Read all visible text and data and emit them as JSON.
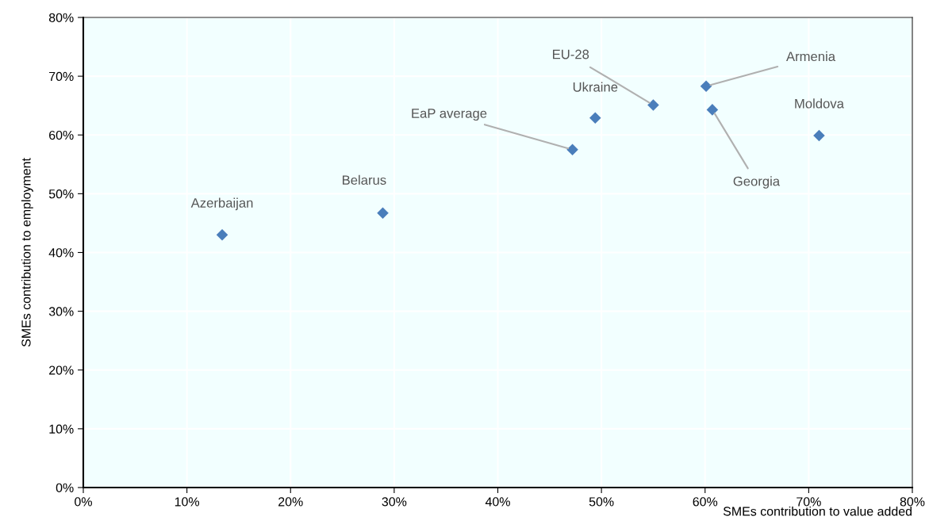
{
  "chart_data": {
    "type": "scatter",
    "xlabel": "SMEs contribution to value added",
    "ylabel": "SMEs contribution to employment",
    "series": [
      {
        "color": "#4a7ebb",
        "x": [
          13.4,
          28.9,
          47.2,
          49.4,
          55.0,
          60.1,
          60.7,
          71.0
        ],
        "values": [
          43.0,
          46.7,
          57.5,
          62.9,
          65.1,
          68.3,
          64.3,
          59.9
        ]
      }
    ],
    "marker": "diamond",
    "grid": true,
    "xlim": [
      0,
      80
    ],
    "ylim": [
      0,
      80
    ],
    "xticks": [
      {
        "value": 0,
        "label": "0%"
      },
      {
        "value": 10,
        "label": "10%"
      },
      {
        "value": 20,
        "label": "20%"
      },
      {
        "value": 30,
        "label": "30%"
      },
      {
        "value": 40,
        "label": "40%"
      },
      {
        "value": 50,
        "label": "50%"
      },
      {
        "value": 60,
        "label": "60%"
      },
      {
        "value": 70,
        "label": "70%"
      },
      {
        "value": 80,
        "label": "80%"
      }
    ],
    "yticks": [
      {
        "value": 0,
        "label": "0%"
      },
      {
        "value": 10,
        "label": "10%"
      },
      {
        "value": 20,
        "label": "20%"
      },
      {
        "value": 30,
        "label": "30%"
      },
      {
        "value": 40,
        "label": "40%"
      },
      {
        "value": 50,
        "label": "50%"
      },
      {
        "value": 60,
        "label": "60%"
      },
      {
        "value": 70,
        "label": "70%"
      },
      {
        "value": 80,
        "label": "80%"
      }
    ],
    "annotations": [
      {
        "text": "Azerbaijan",
        "x": 13.4,
        "y": 43.0
      },
      {
        "text": "Belarus",
        "x": 28.9,
        "y": 46.7
      },
      {
        "text": "EaP average",
        "x": 47.2,
        "y": 57.5
      },
      {
        "text": "Ukraine",
        "x": 49.4,
        "y": 62.9
      },
      {
        "text": "EU-28",
        "x": 55.0,
        "y": 65.1
      },
      {
        "text": "Armenia",
        "x": 60.1,
        "y": 68.3
      },
      {
        "text": "Georgia",
        "x": 60.7,
        "y": 64.3
      },
      {
        "text": "Moldova",
        "x": 71.0,
        "y": 59.9
      }
    ]
  }
}
